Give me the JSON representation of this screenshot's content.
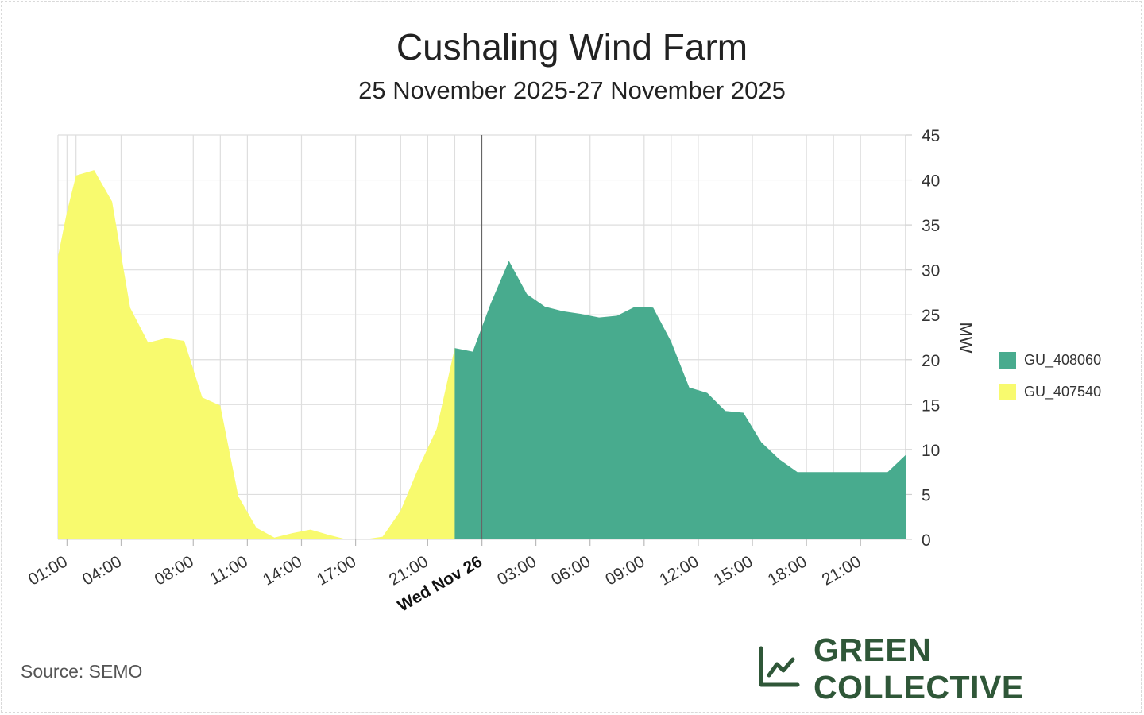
{
  "chart_data": {
    "type": "area",
    "title": "Cushaling Wind Farm",
    "subtitle": "25 November 2025-27 November 2025",
    "ylabel": "MW",
    "ylim": [
      0,
      45
    ],
    "yticks": [
      0,
      5,
      10,
      15,
      20,
      25,
      30,
      35,
      40,
      45
    ],
    "x_unit": "hours since 25 Nov 2025 00:00",
    "xlim": [
      0.5,
      47.5
    ],
    "xticks": [
      {
        "hour": 1,
        "label": "01:00",
        "bold": false
      },
      {
        "hour": 4,
        "label": "04:00",
        "bold": false
      },
      {
        "hour": 8,
        "label": "08:00",
        "bold": false
      },
      {
        "hour": 11,
        "label": "11:00",
        "bold": false
      },
      {
        "hour": 14,
        "label": "14:00",
        "bold": false
      },
      {
        "hour": 17,
        "label": "17:00",
        "bold": false
      },
      {
        "hour": 21,
        "label": "21:00",
        "bold": false
      },
      {
        "hour": 24,
        "label": "Wed Nov 26",
        "bold": true
      },
      {
        "hour": 27,
        "label": "03:00",
        "bold": false
      },
      {
        "hour": 30,
        "label": "06:00",
        "bold": false
      },
      {
        "hour": 33,
        "label": "09:00",
        "bold": false
      },
      {
        "hour": 36,
        "label": "12:00",
        "bold": false
      },
      {
        "hour": 39,
        "label": "15:00",
        "bold": false
      },
      {
        "hour": 42,
        "label": "18:00",
        "bold": false
      },
      {
        "hour": 45,
        "label": "21:00",
        "bold": false
      }
    ],
    "extra_gridlines": [
      1.5,
      9.5,
      19.5,
      22.5,
      34.5,
      43.5
    ],
    "day_divider_hour": 24,
    "series": [
      {
        "name": "GU_408060",
        "color": "#48ab8e",
        "x": [
          22.5,
          23.5,
          24.5,
          25.5,
          26.5,
          27.5,
          28.5,
          29.5,
          30.5,
          31.5,
          32.5,
          33.0,
          33.5,
          34.5,
          35.5,
          36.5,
          37.5,
          38.5,
          39.5,
          40.5,
          41.5,
          42.5,
          43.5,
          44.5,
          45.5,
          46.5,
          47.5
        ],
        "values": [
          21.3,
          20.9,
          26.3,
          31.0,
          27.3,
          25.9,
          25.4,
          25.1,
          24.7,
          24.9,
          25.9,
          25.9,
          25.8,
          22.0,
          16.9,
          16.3,
          14.3,
          14.1,
          10.8,
          8.9,
          7.5,
          7.5,
          7.5,
          7.5,
          7.5,
          7.5,
          9.4
        ]
      },
      {
        "name": "GU_407540",
        "color": "#f8fa6e",
        "x": [
          0.5,
          1.0,
          1.5,
          2.5,
          3.5,
          4.5,
          5.5,
          6.5,
          7.5,
          8.5,
          9.5,
          10.5,
          11.5,
          12.5,
          13.5,
          14.5,
          15.5,
          16.5,
          17.5,
          18.5,
          19.5,
          20.5,
          21.5,
          22.5,
          23.5
        ],
        "values": [
          31.5,
          36.5,
          40.5,
          41.1,
          37.6,
          25.8,
          21.9,
          22.4,
          22.1,
          15.8,
          14.9,
          4.8,
          1.3,
          0.2,
          0.7,
          1.1,
          0.5,
          0.0,
          0.0,
          0.3,
          3.2,
          8.0,
          12.3,
          21.3,
          0.0
        ]
      }
    ],
    "legend_position": "right"
  },
  "source_text": "Source: SEMO",
  "brand": {
    "name": "GREEN COLLECTIVE",
    "logo_icon": "chart-line-icon",
    "color": "#2f5738"
  }
}
